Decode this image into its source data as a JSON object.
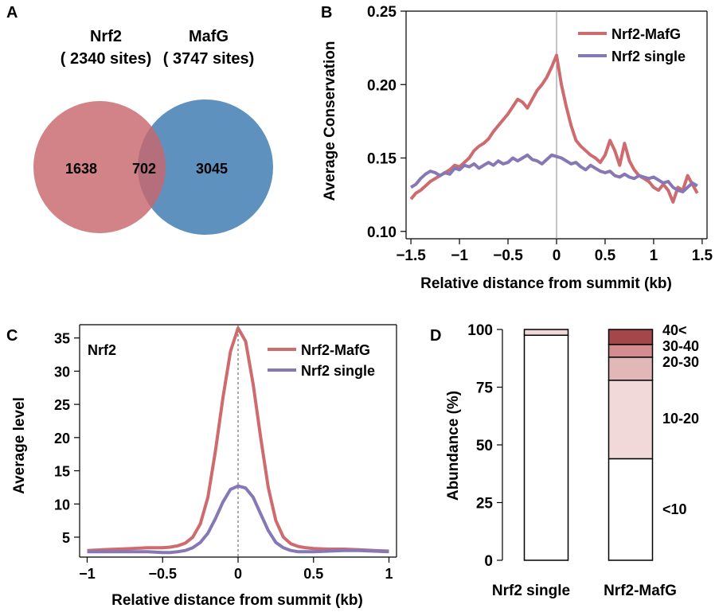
{
  "panel_labels": {
    "a": "A",
    "b": "B",
    "c": "C",
    "d": "D"
  },
  "colors": {
    "red": "#cd6b6f",
    "purple": "#8678b5",
    "venn_red": "#c8686d",
    "venn_blue": "#5f91bf"
  },
  "chart_data": [
    {
      "type": "venn",
      "sets": [
        {
          "name": "Nrf2",
          "sites_label": "( 2340 sites)",
          "only": "1638"
        },
        {
          "name": "MafG",
          "sites_label": "( 3747 sites)",
          "only": "3045"
        }
      ],
      "overlap": "702"
    },
    {
      "type": "line",
      "xlabel": "Relative distance from summit (kb)",
      "ylabel": "Average Conservation",
      "xlim": [
        -1.55,
        1.55
      ],
      "ylim": [
        0.095,
        0.25
      ],
      "x_ticks": [
        -1.5,
        -1,
        -0.5,
        0,
        0.5,
        1,
        1.5
      ],
      "x_tick_labels": [
        "−1.5",
        "−1",
        "−0.5",
        "0",
        "0.5",
        "1",
        "1.5"
      ],
      "y_ticks": [
        0.1,
        0.15,
        0.2,
        0.25
      ],
      "y_tick_labels": [
        "0.10",
        "0.15",
        "0.20",
        "0.25"
      ],
      "vline": 0,
      "legend_position": "top-right",
      "series": [
        {
          "name": "Nrf2-MafG",
          "color": "#cd6b6f",
          "x": [
            -1.5,
            -1.45,
            -1.4,
            -1.35,
            -1.3,
            -1.25,
            -1.2,
            -1.15,
            -1.1,
            -1.05,
            -1.0,
            -0.95,
            -0.9,
            -0.85,
            -0.8,
            -0.75,
            -0.7,
            -0.65,
            -0.6,
            -0.55,
            -0.5,
            -0.45,
            -0.4,
            -0.35,
            -0.3,
            -0.25,
            -0.2,
            -0.15,
            -0.1,
            -0.05,
            0.0,
            0.05,
            0.1,
            0.15,
            0.2,
            0.25,
            0.3,
            0.35,
            0.4,
            0.45,
            0.5,
            0.55,
            0.6,
            0.65,
            0.7,
            0.75,
            0.8,
            0.85,
            0.9,
            0.95,
            1.0,
            1.05,
            1.1,
            1.15,
            1.2,
            1.25,
            1.3,
            1.35,
            1.4,
            1.45
          ],
          "y": [
            0.122,
            0.126,
            0.128,
            0.131,
            0.134,
            0.136,
            0.138,
            0.14,
            0.142,
            0.145,
            0.144,
            0.147,
            0.15,
            0.155,
            0.158,
            0.16,
            0.163,
            0.168,
            0.172,
            0.176,
            0.18,
            0.185,
            0.19,
            0.188,
            0.184,
            0.19,
            0.196,
            0.2,
            0.205,
            0.212,
            0.22,
            0.2,
            0.185,
            0.172,
            0.162,
            0.158,
            0.155,
            0.152,
            0.15,
            0.147,
            0.152,
            0.162,
            0.155,
            0.145,
            0.16,
            0.148,
            0.142,
            0.138,
            0.136,
            0.134,
            0.13,
            0.128,
            0.132,
            0.128,
            0.12,
            0.13,
            0.128,
            0.138,
            0.132,
            0.126
          ]
        },
        {
          "name": "Nrf2 single",
          "color": "#8678b5",
          "x": [
            -1.5,
            -1.45,
            -1.4,
            -1.35,
            -1.3,
            -1.25,
            -1.2,
            -1.15,
            -1.1,
            -1.05,
            -1.0,
            -0.95,
            -0.9,
            -0.85,
            -0.8,
            -0.75,
            -0.7,
            -0.65,
            -0.6,
            -0.55,
            -0.5,
            -0.45,
            -0.4,
            -0.35,
            -0.3,
            -0.25,
            -0.2,
            -0.15,
            -0.1,
            -0.05,
            0.0,
            0.05,
            0.1,
            0.15,
            0.2,
            0.25,
            0.3,
            0.35,
            0.4,
            0.45,
            0.5,
            0.55,
            0.6,
            0.65,
            0.7,
            0.75,
            0.8,
            0.85,
            0.9,
            0.95,
            1.0,
            1.05,
            1.1,
            1.15,
            1.2,
            1.25,
            1.3,
            1.35,
            1.4,
            1.45
          ],
          "y": [
            0.13,
            0.132,
            0.136,
            0.139,
            0.141,
            0.14,
            0.138,
            0.14,
            0.139,
            0.143,
            0.142,
            0.145,
            0.144,
            0.146,
            0.143,
            0.145,
            0.147,
            0.145,
            0.148,
            0.146,
            0.147,
            0.15,
            0.148,
            0.15,
            0.152,
            0.149,
            0.148,
            0.146,
            0.149,
            0.152,
            0.151,
            0.15,
            0.148,
            0.146,
            0.147,
            0.144,
            0.142,
            0.145,
            0.143,
            0.141,
            0.14,
            0.141,
            0.138,
            0.137,
            0.139,
            0.137,
            0.136,
            0.138,
            0.137,
            0.136,
            0.137,
            0.135,
            0.133,
            0.134,
            0.13,
            0.128,
            0.127,
            0.13,
            0.133,
            0.131
          ]
        }
      ]
    },
    {
      "type": "line",
      "title": "Nrf2",
      "xlabel": "Relative distance from summit (kb)",
      "ylabel": "Average level",
      "xlim": [
        -1.05,
        1.05
      ],
      "ylim": [
        2,
        37
      ],
      "x_ticks": [
        -1,
        -0.5,
        0,
        0.5,
        1
      ],
      "x_tick_labels": [
        "−1",
        "−0.5",
        "0",
        "0.5",
        "1"
      ],
      "y_ticks": [
        5,
        10,
        15,
        20,
        25,
        30,
        35
      ],
      "y_tick_labels": [
        "5",
        "10",
        "15",
        "20",
        "25",
        "30",
        "35"
      ],
      "vline": 0,
      "legend_position": "top-right",
      "series": [
        {
          "name": "Nrf2-MafG",
          "color": "#cd6b6f",
          "x": [
            -1.0,
            -0.9,
            -0.8,
            -0.7,
            -0.6,
            -0.5,
            -0.45,
            -0.4,
            -0.35,
            -0.3,
            -0.25,
            -0.2,
            -0.15,
            -0.1,
            -0.05,
            0.0,
            0.05,
            0.1,
            0.15,
            0.2,
            0.25,
            0.3,
            0.35,
            0.4,
            0.45,
            0.5,
            0.6,
            0.7,
            0.8,
            0.9,
            1.0
          ],
          "y": [
            3.0,
            3.1,
            3.2,
            3.3,
            3.4,
            3.4,
            3.5,
            3.7,
            4.1,
            5.0,
            7.0,
            11.0,
            18.0,
            26.0,
            33.0,
            36.5,
            34.5,
            28.0,
            20.0,
            12.5,
            7.5,
            5.0,
            4.0,
            3.6,
            3.4,
            3.3,
            3.2,
            3.2,
            3.1,
            3.0,
            2.9
          ]
        },
        {
          "name": "Nrf2 single",
          "color": "#8678b5",
          "x": [
            -1.0,
            -0.9,
            -0.8,
            -0.7,
            -0.6,
            -0.5,
            -0.45,
            -0.4,
            -0.35,
            -0.3,
            -0.25,
            -0.2,
            -0.15,
            -0.1,
            -0.05,
            0.0,
            0.05,
            0.1,
            0.15,
            0.2,
            0.25,
            0.3,
            0.35,
            0.4,
            0.45,
            0.5,
            0.6,
            0.7,
            0.8,
            0.9,
            1.0
          ],
          "y": [
            2.8,
            2.8,
            2.8,
            2.8,
            2.8,
            2.7,
            2.7,
            2.8,
            3.0,
            3.4,
            4.2,
            5.6,
            7.8,
            10.3,
            12.2,
            12.7,
            12.4,
            11.0,
            8.5,
            6.0,
            4.2,
            3.4,
            3.0,
            2.8,
            2.8,
            2.8,
            2.9,
            3.0,
            3.0,
            2.9,
            2.8
          ]
        }
      ]
    },
    {
      "type": "bar",
      "stacked": true,
      "ylabel": "Abundance (%)",
      "ylim": [
        0,
        100
      ],
      "y_ticks": [
        0,
        25,
        50,
        75,
        100
      ],
      "y_tick_labels": [
        "0",
        "25",
        "50",
        "75",
        "100"
      ],
      "categories": [
        "Nrf2 single",
        "Nrf2-MafG"
      ],
      "series": [
        {
          "name": "<10",
          "color": "#ffffff",
          "values": [
            97.5,
            44
          ]
        },
        {
          "name": "10-20",
          "color": "#f1d9da",
          "values": [
            2.5,
            34
          ]
        },
        {
          "name": "20-30",
          "color": "#e2b7b8",
          "values": [
            0,
            10
          ]
        },
        {
          "name": "30-40",
          "color": "#d38c8f",
          "values": [
            0,
            5.5
          ]
        },
        {
          "name": "40<",
          "color": "#a4474b",
          "values": [
            0,
            6.5
          ]
        }
      ]
    }
  ]
}
